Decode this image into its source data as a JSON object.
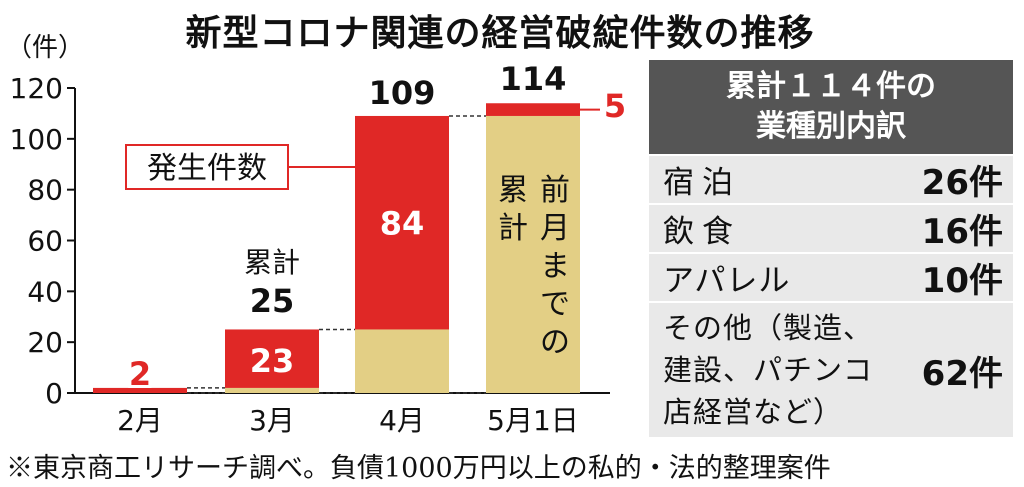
{
  "title": "新型コロナ関連の経営破綻件数の推移",
  "chart_data": {
    "type": "bar",
    "unit_label": "（件）",
    "categories": [
      "2月",
      "3月",
      "4月",
      "5月1日"
    ],
    "ylim": [
      0,
      120
    ],
    "yticks": [
      "0",
      "20",
      "40",
      "60",
      "80",
      "100",
      "120"
    ],
    "series": [
      {
        "name": "前月までの累計",
        "values": [
          0,
          2,
          25,
          109
        ]
      },
      {
        "name": "発生件数",
        "values": [
          2,
          23,
          84,
          5
        ]
      }
    ],
    "totals": [
      null,
      25,
      109,
      114
    ],
    "cumulative_label": "累計",
    "new_value_labels": [
      "2",
      "23",
      "84",
      "5"
    ],
    "total_labels": [
      "",
      "25",
      "109",
      "114"
    ],
    "legend_label": "発生件数",
    "cumulative_bar_text_right": "前月までの",
    "cumulative_bar_text_left": "累計",
    "colors": {
      "new": "#e02826",
      "cumulative": "#e3cf85",
      "accent": "#e02826"
    }
  },
  "breakdown": {
    "title_line1": "累計１１４件の",
    "title_line2": "業種別内訳",
    "rows": [
      {
        "name": "宿泊",
        "value": "26件"
      },
      {
        "name": "飲食",
        "value": "16件"
      },
      {
        "name": "アパレル",
        "value": "10件"
      }
    ],
    "other": {
      "line1": "その他（製造、",
      "line2": "建設、パチンコ",
      "line3": "店経営など）",
      "value": "62件"
    }
  },
  "footnote": "※東京商工リサーチ調べ。負債1000万円以上の私的・法的整理案件"
}
